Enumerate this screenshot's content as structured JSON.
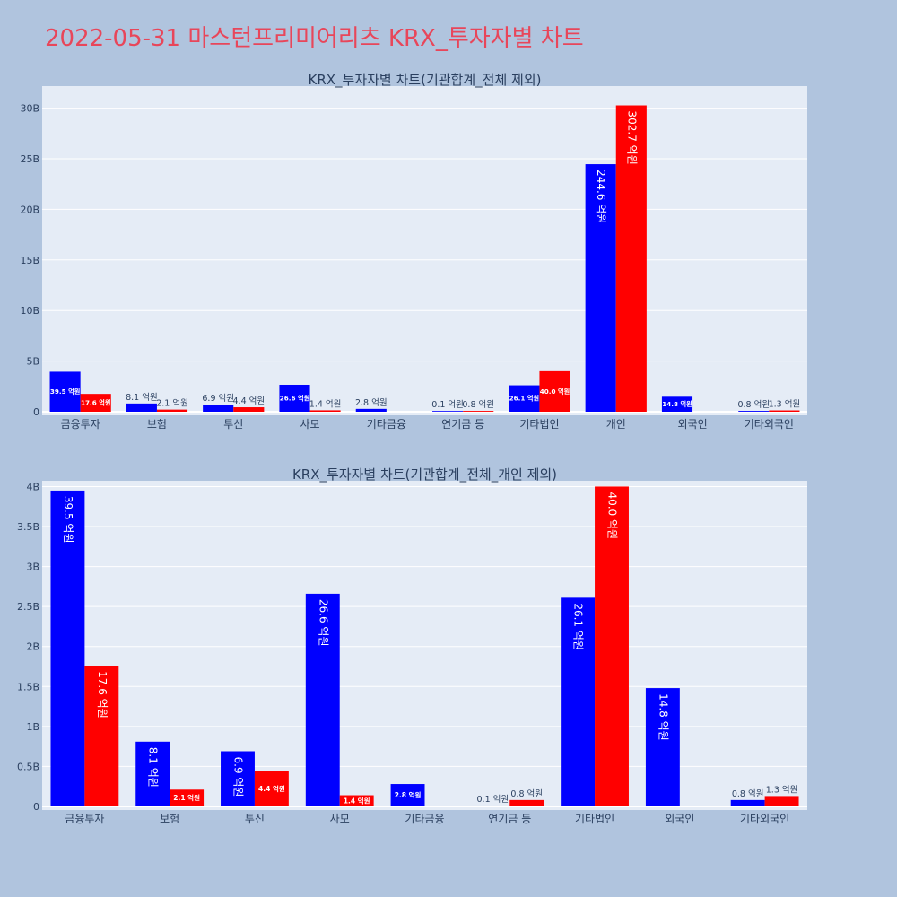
{
  "page_title": "2022-05-31 마스턴프리미어리츠 KRX_투자자별 차트",
  "colors": {
    "series_a": "#0000ff",
    "series_b": "#ff0000",
    "plot_bg": "#e5ecf6",
    "page_bg": "#b0c4de",
    "title": "#e8465a"
  },
  "chart_data": [
    {
      "type": "bar",
      "title": "KRX_투자자별 차트(기관합계_전체 제외)",
      "categories": [
        "금융투자",
        "보험",
        "투신",
        "사모",
        "기타금융",
        "연기금 등",
        "기타법인",
        "개인",
        "외국인",
        "기타외국인"
      ],
      "series": [
        {
          "values": [
            3950000000,
            810000000,
            690000000,
            2660000000,
            280000000,
            10000000,
            2610000000,
            24460000000,
            1480000000,
            80000000
          ],
          "labels": [
            "39.5 억원",
            "8.1 억원",
            "6.9 억원",
            "26.6 억원",
            "2.8 억원",
            "0.1 억원",
            "26.1 억원",
            "244.6 억원",
            "14.8 억원",
            "0.8 억원"
          ]
        },
        {
          "values": [
            1760000000,
            210000000,
            440000000,
            140000000,
            null,
            80000000,
            4000000000,
            30270000000,
            null,
            130000000
          ],
          "labels": [
            "17.6 억원",
            "2.1 억원",
            "4.4 억원",
            "1.4 억원",
            null,
            "0.8 억원",
            "40.0 억원",
            "302.7 억원",
            null,
            "1.3 억원"
          ]
        }
      ],
      "yticks": [
        0,
        5000000000,
        10000000000,
        15000000000,
        20000000000,
        25000000000,
        30000000000
      ],
      "ytick_labels": [
        "0",
        "5B",
        "10B",
        "15B",
        "20B",
        "25B",
        "30B"
      ],
      "ylim": [
        0,
        32000000000
      ],
      "grid": true,
      "legend": "none"
    },
    {
      "type": "bar",
      "title": "KRX_투자자별 차트(기관합계_전체_개인 제외)",
      "categories": [
        "금융투자",
        "보험",
        "투신",
        "사모",
        "기타금융",
        "연기금 등",
        "기타법인",
        "외국인",
        "기타외국인"
      ],
      "series": [
        {
          "values": [
            3950000000,
            810000000,
            690000000,
            2660000000,
            280000000,
            10000000,
            2610000000,
            1480000000,
            80000000
          ],
          "labels": [
            "39.5 억원",
            "8.1 억원",
            "6.9 억원",
            "26.6 억원",
            "2.8 억원",
            "0.1 억원",
            "26.1 억원",
            "14.8 억원",
            "0.8 억원"
          ]
        },
        {
          "values": [
            1760000000,
            210000000,
            440000000,
            140000000,
            null,
            80000000,
            4000000000,
            null,
            130000000
          ],
          "labels": [
            "17.6 억원",
            "2.1 억원",
            "4.4 억원",
            "1.4 억원",
            null,
            "0.8 억원",
            "40.0 억원",
            null,
            "1.3 억원"
          ]
        }
      ],
      "yticks": [
        0,
        500000000,
        1000000000,
        1500000000,
        2000000000,
        2500000000,
        3000000000,
        3500000000,
        4000000000
      ],
      "ytick_labels": [
        "0",
        "0.5B",
        "1B",
        "1.5B",
        "2B",
        "2.5B",
        "3B",
        "3.5B",
        "4B"
      ],
      "ylim": [
        0,
        4050000000
      ],
      "grid": true,
      "legend": "none"
    }
  ]
}
